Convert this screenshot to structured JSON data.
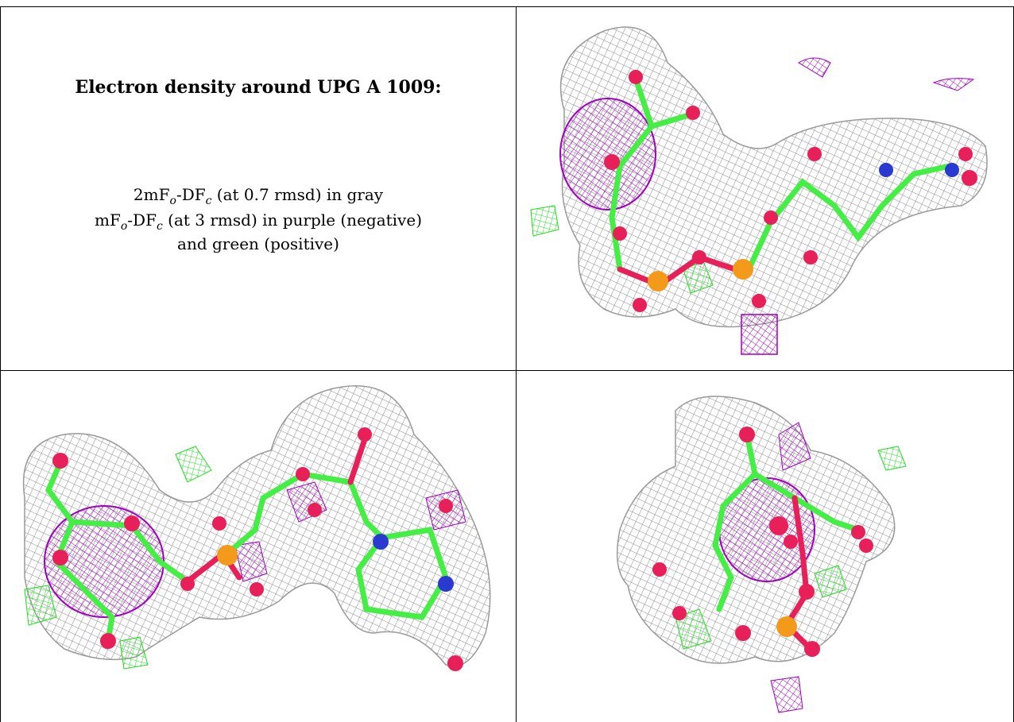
{
  "caption": {
    "title": "Electron density around UPG A 1009:",
    "map1": {
      "pre": "2mF",
      "sub1": "o",
      "mid": "-DF",
      "sub2": "c",
      "post": " (at 0.7 rmsd) in gray"
    },
    "map2": {
      "pre": "mF",
      "sub1": "o",
      "mid": "-DF",
      "sub2": "c",
      "post": " (at 3 rmsd) in purple (negative)"
    },
    "map2_line2": "and green (positive)"
  },
  "colors": {
    "mesh_gray": "#8a8a8a",
    "mesh_purple": "#a000c0",
    "mesh_green": "#22dd22",
    "carbon": "#44ee44",
    "oxygen": "#e8205a",
    "nitrogen": "#2a3ad0",
    "phosphorus": "#f39a1a"
  },
  "panels": [
    {
      "name": "view-1",
      "icon": "molecule-density-view"
    },
    {
      "name": "view-2",
      "icon": "molecule-density-view"
    },
    {
      "name": "view-3",
      "icon": "molecule-density-view"
    }
  ]
}
